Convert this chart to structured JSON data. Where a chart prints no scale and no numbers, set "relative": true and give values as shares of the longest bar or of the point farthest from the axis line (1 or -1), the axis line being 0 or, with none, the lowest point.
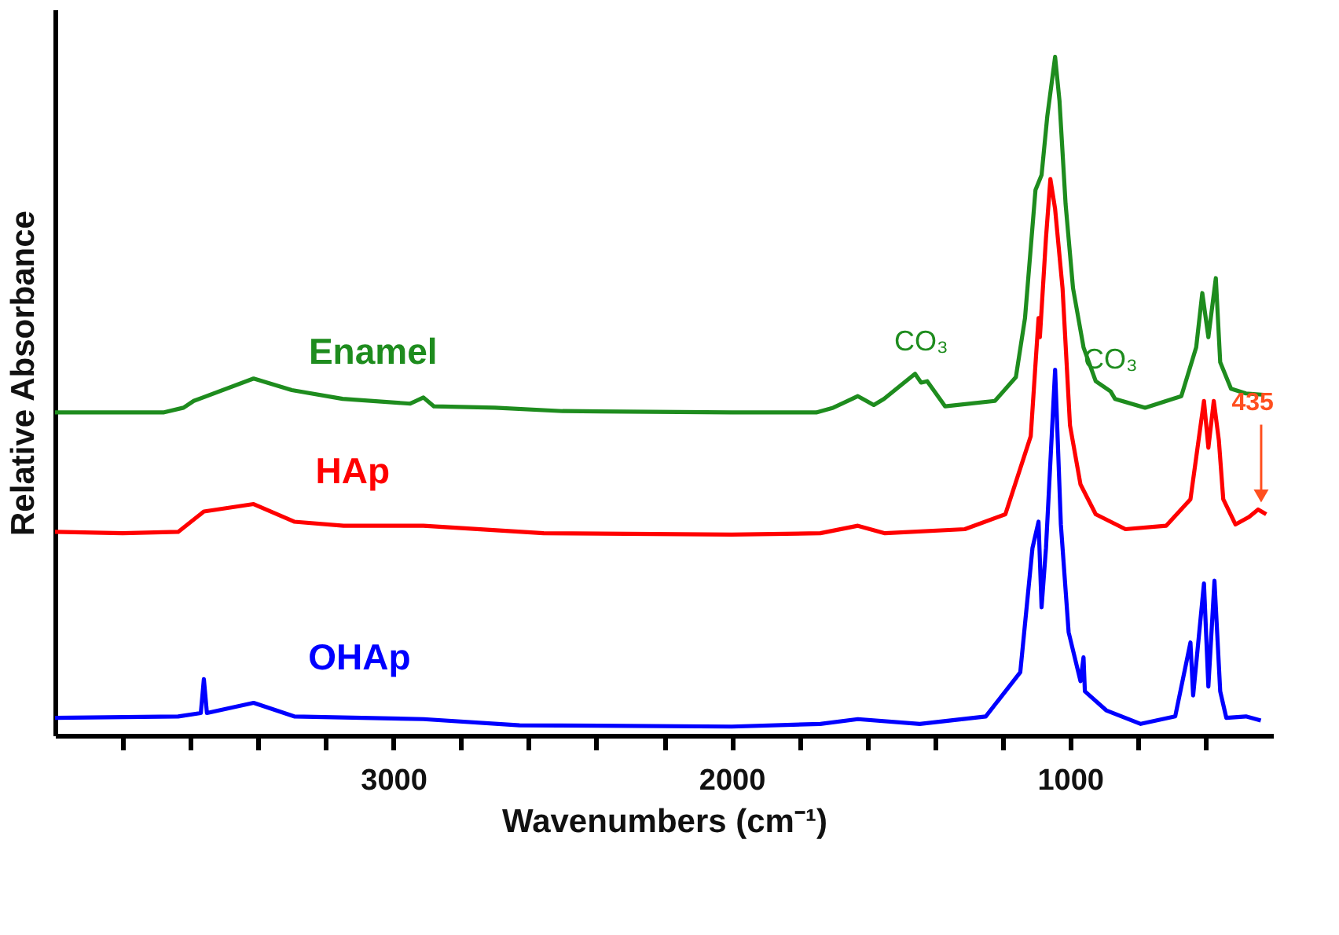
{
  "chart_data": {
    "type": "line",
    "relative": true,
    "xlabel": "Wavenumbers (cm⁻¹)",
    "ylabel": "Relative Absorbance",
    "xlim": [
      4000,
      400
    ],
    "xticks": [
      {
        "value": 3800,
        "label": null
      },
      {
        "value": 3600,
        "label": null
      },
      {
        "value": 3400,
        "label": null
      },
      {
        "value": 3200,
        "label": null
      },
      3000,
      {
        "value": 2800,
        "label": null
      },
      {
        "value": 2600,
        "label": null
      },
      {
        "value": 2400,
        "label": null
      },
      {
        "value": 2200,
        "label": null
      },
      2000,
      {
        "value": 1800,
        "label": null
      },
      {
        "value": 1600,
        "label": null
      },
      {
        "value": 1400,
        "label": null
      },
      {
        "value": 1200,
        "label": null
      },
      1000,
      {
        "value": 800,
        "label": null
      },
      {
        "value": 600,
        "label": null
      }
    ],
    "marker": "none",
    "line_style": "solid",
    "series": [
      {
        "name": "Enamel",
        "color": "#1e8c1e",
        "x": [
          4000,
          3680,
          3620,
          3590,
          3413,
          3300,
          3150,
          2950,
          2911,
          2880,
          2700,
          2500,
          2000,
          1750,
          1700,
          1627,
          1580,
          1550,
          1458,
          1440,
          1422,
          1369,
          1222,
          1160,
          1133,
          1102,
          1084,
          1067,
          1044,
          1031,
          1013,
          991,
          960,
          924,
          880,
          867,
          778,
          671,
          627,
          609,
          591,
          569,
          556,
          524,
          480,
          427
        ],
        "values": [
          0.476,
          0.476,
          0.483,
          0.493,
          0.526,
          0.509,
          0.496,
          0.489,
          0.498,
          0.485,
          0.483,
          0.478,
          0.476,
          0.476,
          0.483,
          0.5,
          0.487,
          0.496,
          0.533,
          0.52,
          0.522,
          0.485,
          0.493,
          0.528,
          0.615,
          0.804,
          0.826,
          0.913,
          1.0,
          0.935,
          0.783,
          0.659,
          0.572,
          0.522,
          0.507,
          0.496,
          0.483,
          0.5,
          0.572,
          0.652,
          0.587,
          0.674,
          0.55,
          0.511,
          0.504,
          0.502
        ]
      },
      {
        "name": "HAp",
        "color": "#ff0000",
        "x": [
          4000,
          3800,
          3636,
          3560,
          3413,
          3293,
          3147,
          2911,
          2556,
          2000,
          1738,
          1627,
          1547,
          1311,
          1191,
          1116,
          1093,
          1089,
          1071,
          1058,
          1044,
          1022,
          1000,
          969,
          924,
          836,
          716,
          644,
          604,
          591,
          575,
          560,
          547,
          511,
          471,
          444,
          420
        ],
        "values": [
          0.3,
          0.298,
          0.3,
          0.33,
          0.341,
          0.315,
          0.309,
          0.309,
          0.298,
          0.296,
          0.298,
          0.309,
          0.298,
          0.304,
          0.326,
          0.441,
          0.615,
          0.587,
          0.733,
          0.82,
          0.776,
          0.659,
          0.457,
          0.37,
          0.326,
          0.304,
          0.309,
          0.348,
          0.493,
          0.424,
          0.493,
          0.435,
          0.348,
          0.311,
          0.322,
          0.333,
          0.326
        ]
      },
      {
        "name": "OHAp",
        "color": "#0000ff",
        "x": [
          4000,
          3636,
          3569,
          3560,
          3551,
          3413,
          3293,
          2911,
          2627,
          2000,
          1738,
          1627,
          1444,
          1249,
          1147,
          1111,
          1093,
          1084,
          1071,
          1044,
          1027,
          1004,
          969,
          960,
          956,
          893,
          791,
          689,
          644,
          636,
          604,
          591,
          573,
          556,
          538,
          480,
          436
        ],
        "values": [
          0.026,
          0.028,
          0.033,
          0.083,
          0.033,
          0.048,
          0.028,
          0.024,
          0.015,
          0.013,
          0.017,
          0.024,
          0.017,
          0.028,
          0.093,
          0.276,
          0.315,
          0.189,
          0.276,
          0.539,
          0.311,
          0.152,
          0.08,
          0.115,
          0.065,
          0.037,
          0.017,
          0.028,
          0.137,
          0.059,
          0.224,
          0.072,
          0.228,
          0.065,
          0.026,
          0.028,
          0.022
        ]
      }
    ],
    "annotations": [
      {
        "text": "CO₃",
        "x": 1440,
        "y": 0.533
      },
      {
        "text": "CO₃",
        "x": 880,
        "y": 0.507
      },
      {
        "text": "435",
        "x": 435,
        "y": 0.333
      }
    ]
  }
}
